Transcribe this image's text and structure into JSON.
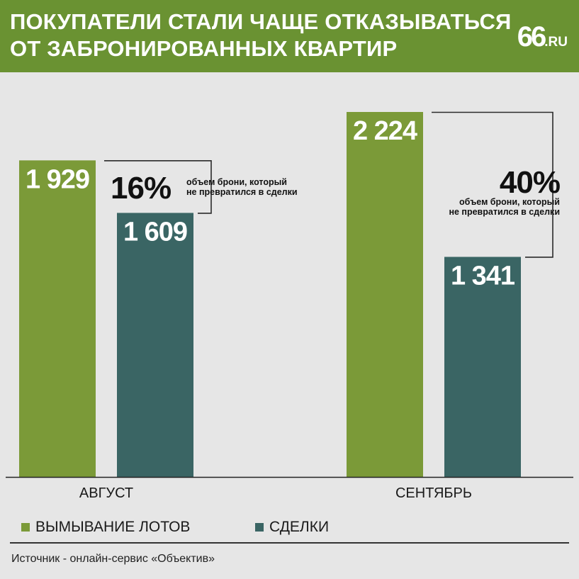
{
  "header": {
    "title_line1": "ПОКУПАТЕЛИ СТАЛИ ЧАЩЕ ОТКАЗЫВАТЬСЯ",
    "title_line2": "ОТ ЗАБРОНИРОВАННЫХ КВАРТИР",
    "logo_number": "66",
    "logo_domain": ".RU"
  },
  "colors": {
    "header_bg": "#6a9232",
    "bar_green": "#7b9a38",
    "bar_teal": "#3a6564",
    "background": "#e6e6e6"
  },
  "chart_data": {
    "type": "bar",
    "categories": [
      "АВГУСТ",
      "СЕНТЯБРЬ"
    ],
    "series": [
      {
        "name": "ВЫМЫВАНИЕ ЛОТОВ",
        "values": [
          1929,
          2224
        ],
        "labels": [
          "1 929",
          "2 224"
        ],
        "color": "#7b9a38"
      },
      {
        "name": "СДЕЛКИ",
        "values": [
          1609,
          1341
        ],
        "labels": [
          "1 609",
          "1 341"
        ],
        "color": "#3a6564"
      }
    ],
    "ylim": [
      0,
      2224
    ],
    "annotations": [
      {
        "category": "АВГУСТ",
        "percent": "16%",
        "text_line1": "объем брони, который",
        "text_line2": "не превратился в сделки"
      },
      {
        "category": "СЕНТЯБРЬ",
        "percent": "40%",
        "text_line1": "объем брони, который",
        "text_line2": "не превратился в сделки"
      }
    ],
    "grid": false,
    "legend_position": "bottom"
  },
  "footer": {
    "source": "Источник - онлайн-сервис «Объектив»"
  }
}
